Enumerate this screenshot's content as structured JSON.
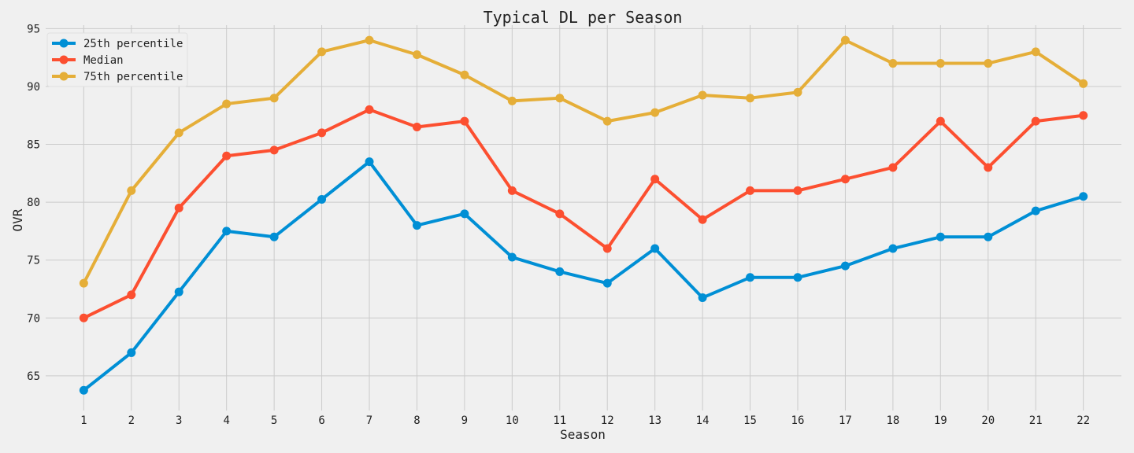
{
  "chart_data": {
    "type": "line",
    "title": "Typical DL per Season",
    "xlabel": "Season",
    "ylabel": "OVR",
    "x": [
      1,
      2,
      3,
      4,
      5,
      6,
      7,
      8,
      9,
      10,
      11,
      12,
      13,
      14,
      15,
      16,
      17,
      18,
      19,
      20,
      21,
      22
    ],
    "x_tick_labels": [
      "1",
      "2",
      "3",
      "4",
      "5",
      "6",
      "7",
      "8",
      "9",
      "10",
      "11",
      "12",
      "13",
      "14",
      "15",
      "16",
      "17",
      "18",
      "19",
      "20",
      "21",
      "22"
    ],
    "xlim": [
      0.2,
      22.8
    ],
    "ylim": [
      62,
      95.3
    ],
    "yticks": [
      65,
      70,
      75,
      80,
      85,
      90,
      95
    ],
    "y_tick_labels": [
      "65",
      "70",
      "75",
      "80",
      "85",
      "90",
      "95"
    ],
    "grid": true,
    "legend_position": "top-left",
    "series": [
      {
        "name": "25th percentile",
        "color": "#008fd5",
        "values": [
          63.75,
          67,
          72.25,
          77.5,
          77,
          80.25,
          83.5,
          78,
          79,
          75.25,
          74,
          73,
          76,
          71.75,
          73.5,
          73.5,
          74.5,
          76,
          77,
          77,
          79.25,
          80.5
        ]
      },
      {
        "name": "Median",
        "color": "#fc4f30",
        "values": [
          70,
          72,
          79.5,
          84,
          84.5,
          86,
          88,
          86.5,
          87,
          81,
          79,
          76,
          82,
          78.5,
          81,
          81,
          82,
          83,
          87,
          83,
          87,
          87.5
        ]
      },
      {
        "name": "75th percentile",
        "color": "#e5ae38",
        "values": [
          73,
          81,
          86,
          88.5,
          89,
          93,
          94,
          92.75,
          91,
          88.75,
          89,
          87,
          87.75,
          89.25,
          89,
          89.5,
          94,
          92,
          92,
          92,
          93,
          90.25
        ]
      }
    ]
  }
}
